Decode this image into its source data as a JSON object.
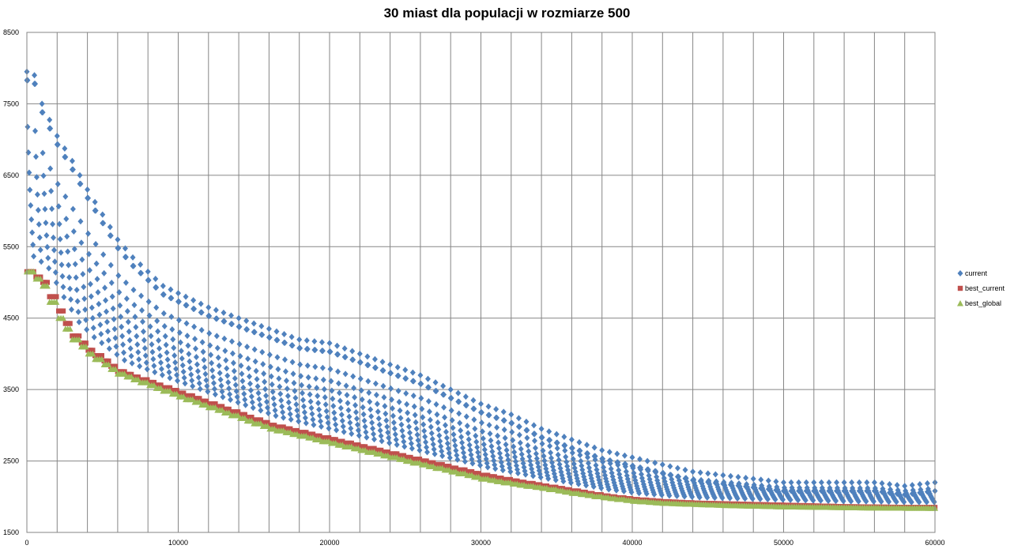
{
  "chart_data": {
    "type": "scatter",
    "title": "30 miast dla populacji w  rozmiarze 500",
    "xlabel": "",
    "ylabel": "",
    "xlim": [
      0,
      60000
    ],
    "ylim": [
      1500,
      8500
    ],
    "x_ticks": [
      0,
      10000,
      20000,
      30000,
      40000,
      50000,
      60000
    ],
    "y_ticks": [
      1500,
      2500,
      3500,
      4500,
      5500,
      6500,
      7500,
      8500
    ],
    "grid": true,
    "legend": "right",
    "generation_period": 500,
    "series": [
      {
        "name": "current",
        "marker": "diamond",
        "color": "#4F81BD",
        "points": [
          [
            0,
            7950
          ],
          [
            500,
            7900
          ],
          [
            1000,
            7500
          ],
          [
            2000,
            7050
          ],
          [
            3000,
            6700
          ],
          [
            4000,
            6300
          ],
          [
            5000,
            5950
          ],
          [
            6000,
            5600
          ],
          [
            7000,
            5350
          ],
          [
            8000,
            5150
          ],
          [
            9000,
            4950
          ],
          [
            10000,
            4850
          ],
          [
            12000,
            4650
          ],
          [
            14000,
            4500
          ],
          [
            16000,
            4350
          ],
          [
            18000,
            4200
          ],
          [
            20000,
            4150
          ],
          [
            22000,
            4000
          ],
          [
            24000,
            3850
          ],
          [
            26000,
            3700
          ],
          [
            28000,
            3500
          ],
          [
            30000,
            3300
          ],
          [
            32000,
            3150
          ],
          [
            34000,
            2950
          ],
          [
            36000,
            2800
          ],
          [
            38000,
            2650
          ],
          [
            40000,
            2550
          ],
          [
            42000,
            2450
          ],
          [
            44000,
            2350
          ],
          [
            46000,
            2300
          ],
          [
            48000,
            2250
          ],
          [
            50000,
            2200
          ],
          [
            52000,
            2200
          ],
          [
            54000,
            2200
          ],
          [
            56000,
            2200
          ],
          [
            58000,
            2150
          ],
          [
            60000,
            2200
          ]
        ]
      },
      {
        "name": "best_current",
        "marker": "square",
        "color": "#C0504D",
        "points": [
          [
            0,
            5150
          ],
          [
            1000,
            5000
          ],
          [
            2000,
            4600
          ],
          [
            3000,
            4250
          ],
          [
            4000,
            4050
          ],
          [
            5000,
            3900
          ],
          [
            6000,
            3750
          ],
          [
            8000,
            3600
          ],
          [
            10000,
            3450
          ],
          [
            12000,
            3300
          ],
          [
            14000,
            3150
          ],
          [
            16000,
            3000
          ],
          [
            18000,
            2900
          ],
          [
            20000,
            2800
          ],
          [
            22000,
            2700
          ],
          [
            24000,
            2600
          ],
          [
            26000,
            2500
          ],
          [
            28000,
            2400
          ],
          [
            30000,
            2300
          ],
          [
            32000,
            2220
          ],
          [
            34000,
            2150
          ],
          [
            36000,
            2080
          ],
          [
            38000,
            2010
          ],
          [
            40000,
            1960
          ],
          [
            42000,
            1930
          ],
          [
            44000,
            1910
          ],
          [
            46000,
            1900
          ],
          [
            48000,
            1890
          ],
          [
            50000,
            1880
          ],
          [
            52000,
            1870
          ],
          [
            54000,
            1860
          ],
          [
            56000,
            1855
          ],
          [
            58000,
            1850
          ],
          [
            60000,
            1850
          ]
        ]
      },
      {
        "name": "best_global",
        "marker": "triangle",
        "color": "#9BBB59",
        "points": [
          [
            0,
            5150
          ],
          [
            1000,
            4950
          ],
          [
            2000,
            4500
          ],
          [
            3000,
            4200
          ],
          [
            4000,
            4000
          ],
          [
            5000,
            3850
          ],
          [
            6000,
            3720
          ],
          [
            8000,
            3560
          ],
          [
            10000,
            3400
          ],
          [
            12000,
            3250
          ],
          [
            14000,
            3100
          ],
          [
            16000,
            2950
          ],
          [
            18000,
            2850
          ],
          [
            20000,
            2750
          ],
          [
            22000,
            2650
          ],
          [
            24000,
            2550
          ],
          [
            26000,
            2450
          ],
          [
            28000,
            2350
          ],
          [
            30000,
            2250
          ],
          [
            32000,
            2180
          ],
          [
            34000,
            2120
          ],
          [
            36000,
            2050
          ],
          [
            38000,
            1990
          ],
          [
            40000,
            1940
          ],
          [
            42000,
            1910
          ],
          [
            44000,
            1895
          ],
          [
            46000,
            1880
          ],
          [
            48000,
            1870
          ],
          [
            50000,
            1860
          ],
          [
            52000,
            1855
          ],
          [
            54000,
            1850
          ],
          [
            56000,
            1845
          ],
          [
            58000,
            1842
          ],
          [
            60000,
            1840
          ]
        ]
      }
    ]
  }
}
